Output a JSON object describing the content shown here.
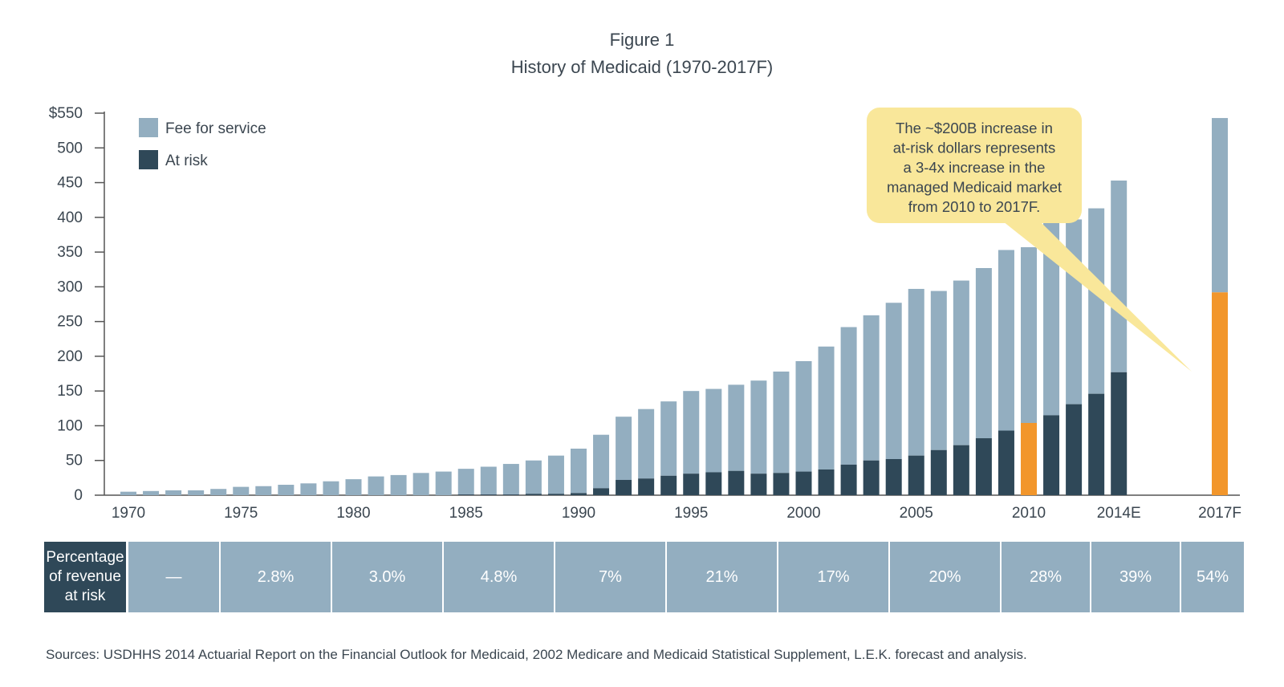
{
  "figure_label": "Figure 1",
  "title": "History of Medicaid (1970-2017F)",
  "colors": {
    "fee": "#93aec0",
    "risk": "#2f4858",
    "highlight": "#f2962b",
    "callout": "#f9e79a",
    "axis": "#555555"
  },
  "chart_data": {
    "type": "bar",
    "stacked": true,
    "y_ticks": [
      "$550",
      "500",
      "450",
      "400",
      "350",
      "300",
      "250",
      "200",
      "150",
      "100",
      "50",
      "0"
    ],
    "ylim": [
      0,
      550
    ],
    "x_tick_labels": [
      "1970",
      "1975",
      "1980",
      "1985",
      "1990",
      "1995",
      "2000",
      "2005",
      "2010",
      "2014E",
      "2017F"
    ],
    "legend": {
      "position": "top-left",
      "entries": [
        "Fee for service",
        "At risk"
      ]
    },
    "categories": [
      "1970",
      "1971",
      "1972",
      "1973",
      "1974",
      "1975",
      "1976",
      "1977",
      "1978",
      "1979",
      "1980",
      "1981",
      "1982",
      "1983",
      "1984",
      "1985",
      "1986",
      "1987",
      "1988",
      "1989",
      "1990",
      "1991",
      "1992",
      "1993",
      "1994",
      "1995",
      "1996",
      "1997",
      "1998",
      "1999",
      "2000",
      "2001",
      "2002",
      "2003",
      "2004",
      "2005",
      "2006",
      "2007",
      "2008",
      "2009",
      "2010",
      "2011",
      "2012",
      "2013",
      "2014E",
      "2017F"
    ],
    "series": [
      {
        "name": "At risk",
        "values": [
          0,
          0,
          0,
          0,
          0,
          0,
          0,
          0,
          0,
          0,
          0,
          0,
          0,
          0,
          0,
          1,
          1,
          1,
          2,
          2,
          3,
          10,
          22,
          24,
          28,
          31,
          33,
          35,
          31,
          32,
          34,
          37,
          44,
          50,
          52,
          57,
          65,
          72,
          82,
          93,
          104,
          115,
          131,
          146,
          177,
          292
        ]
      },
      {
        "name": "Fee for service",
        "values": [
          5,
          6,
          7,
          7,
          9,
          12,
          13,
          15,
          17,
          20,
          23,
          27,
          29,
          32,
          34,
          37,
          40,
          44,
          48,
          55,
          64,
          77,
          91,
          100,
          107,
          119,
          120,
          124,
          134,
          146,
          159,
          177,
          198,
          209,
          225,
          240,
          229,
          237,
          245,
          260,
          253,
          294,
          266,
          267,
          276,
          251
        ]
      }
    ],
    "highlight_bar": "2010",
    "annotation": "The ~$200B increase in\nat-risk dollars represents\na 3-4x increase in the\nmanaged Medicaid market\nfrom 2010 to 2017F."
  },
  "pct_table": {
    "header": "Percentage\nof revenue\nat risk",
    "cells": [
      "—",
      "2.8%",
      "3.0%",
      "4.8%",
      "7%",
      "21%",
      "17%",
      "20%",
      "28%",
      "39%",
      "54%"
    ]
  },
  "sources": "Sources: USDHHS 2014 Actuarial Report on the Financial Outlook for Medicaid, 2002 Medicare and Medicaid Statistical Supplement, L.E.K. forecast and analysis."
}
